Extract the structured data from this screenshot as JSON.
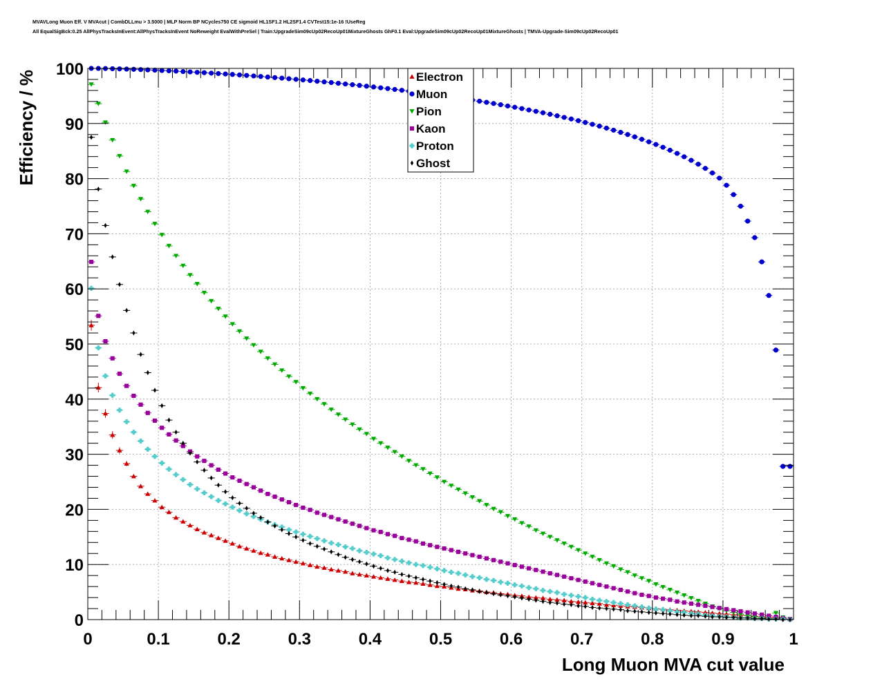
{
  "titles": {
    "line1": "MVAVLong Muon Eff. V MVAcut | CombDLLmu > 3.5000 | MLP Norm BP NCycles750 CE sigmoid HL1SF1.2 HL2SF1.4 CVTest15:1e-16 !UseReg",
    "line2": "All EqualSigBck:0.25 AllPhysTracksInEvent:AllPhysTracksInEvent NoReweight EvalWithPreSel | Train:UpgradeSim09cUp02RecoUp01MixtureGhosts GhF0.1 Eval:UpgradeSim09cUp02RecoUp01MixtureGhosts | TMVA-Upgrade-Sim09cUp02RecoUp01"
  },
  "chart_data": {
    "type": "scatter",
    "xlabel": "Long Muon MVA cut value",
    "ylabel": "Efficiency / %",
    "xlim": [
      0,
      1
    ],
    "ylim": [
      0,
      100
    ],
    "xticks": [
      "0",
      "0.1",
      "0.2",
      "0.3",
      "0.4",
      "0.5",
      "0.6",
      "0.7",
      "0.8",
      "0.9",
      "1"
    ],
    "yticks": [
      "0",
      "10",
      "20",
      "30",
      "40",
      "50",
      "60",
      "70",
      "80",
      "90",
      "100"
    ],
    "grid": true,
    "legend_position": "top-center",
    "x": [
      0.005,
      0.015,
      0.025,
      0.035,
      0.045,
      0.055,
      0.065,
      0.075,
      0.085,
      0.095,
      0.105,
      0.115,
      0.125,
      0.135,
      0.145,
      0.155,
      0.165,
      0.175,
      0.185,
      0.195,
      0.205,
      0.215,
      0.225,
      0.235,
      0.245,
      0.255,
      0.265,
      0.275,
      0.285,
      0.295,
      0.305,
      0.315,
      0.325,
      0.335,
      0.345,
      0.355,
      0.365,
      0.375,
      0.385,
      0.395,
      0.405,
      0.415,
      0.425,
      0.435,
      0.445,
      0.455,
      0.465,
      0.475,
      0.485,
      0.495,
      0.505,
      0.515,
      0.525,
      0.535,
      0.545,
      0.555,
      0.565,
      0.575,
      0.585,
      0.595,
      0.605,
      0.615,
      0.625,
      0.635,
      0.645,
      0.655,
      0.665,
      0.675,
      0.685,
      0.695,
      0.705,
      0.715,
      0.725,
      0.735,
      0.745,
      0.755,
      0.765,
      0.775,
      0.785,
      0.795,
      0.805,
      0.815,
      0.825,
      0.835,
      0.845,
      0.855,
      0.865,
      0.875,
      0.885,
      0.895,
      0.905,
      0.915,
      0.925,
      0.935,
      0.945,
      0.955,
      0.965,
      0.975,
      0.985,
      0.995
    ],
    "series": [
      {
        "name": "Electron",
        "marker": "triangle-up",
        "color": "#cc0000",
        "values": [
          53.4,
          42.1,
          37.4,
          33.5,
          30.7,
          28.3,
          26.0,
          24.2,
          22.8,
          21.6,
          20.4,
          19.5,
          18.5,
          17.8,
          17.1,
          16.4,
          15.8,
          15.3,
          14.8,
          14.3,
          13.8,
          13.3,
          12.9,
          12.5,
          12.1,
          11.8,
          11.4,
          11.1,
          10.8,
          10.5,
          10.2,
          9.9,
          9.6,
          9.4,
          9.1,
          8.9,
          8.7,
          8.4,
          8.2,
          8.0,
          7.8,
          7.6,
          7.4,
          7.2,
          7.0,
          6.8,
          6.7,
          6.5,
          6.3,
          6.1,
          6.0,
          5.8,
          5.6,
          5.5,
          5.3,
          5.2,
          5.0,
          4.9,
          4.7,
          4.6,
          4.4,
          4.3,
          4.1,
          4.0,
          3.9,
          3.7,
          3.6,
          3.5,
          3.3,
          3.2,
          3.1,
          3.0,
          2.9,
          2.7,
          2.6,
          2.5,
          2.4,
          2.3,
          2.2,
          2.1,
          2.0,
          1.9,
          1.8,
          1.7,
          1.6,
          1.5,
          1.4,
          1.3,
          1.2,
          1.1,
          1.0,
          0.9,
          0.8,
          0.7,
          0.6,
          0.5,
          0.4,
          0.3,
          0.2,
          0.1
        ]
      },
      {
        "name": "Muon",
        "marker": "circle",
        "color": "#0000cc",
        "values": [
          100.0,
          99.99,
          99.97,
          99.94,
          99.91,
          99.87,
          99.83,
          99.78,
          99.73,
          99.68,
          99.62,
          99.56,
          99.5,
          99.43,
          99.36,
          99.29,
          99.22,
          99.14,
          99.06,
          98.98,
          98.9,
          98.81,
          98.72,
          98.63,
          98.53,
          98.43,
          98.33,
          98.23,
          98.12,
          98.01,
          97.9,
          97.79,
          97.67,
          97.55,
          97.43,
          97.3,
          97.17,
          97.04,
          96.91,
          96.77,
          96.63,
          96.48,
          96.34,
          96.18,
          96.03,
          95.87,
          95.71,
          95.54,
          95.37,
          95.19,
          95.02,
          94.83,
          94.64,
          94.45,
          94.25,
          94.05,
          93.84,
          93.63,
          93.41,
          93.18,
          92.95,
          92.71,
          92.46,
          92.21,
          91.95,
          91.68,
          91.4,
          91.11,
          90.82,
          90.51,
          90.19,
          89.86,
          89.52,
          89.16,
          88.79,
          88.4,
          88.0,
          87.58,
          87.14,
          86.68,
          86.2,
          85.69,
          85.15,
          84.58,
          83.97,
          83.32,
          82.62,
          81.86,
          81.03,
          80.1,
          78.8,
          77.1,
          75.0,
          72.3,
          69.3,
          64.9,
          58.8,
          48.9,
          27.8,
          27.8
        ]
      },
      {
        "name": "Pion",
        "marker": "triangle-down",
        "color": "#00aa00",
        "values": [
          97.1,
          93.6,
          90.2,
          87.0,
          84.1,
          81.3,
          78.7,
          76.3,
          74.0,
          71.8,
          69.8,
          67.8,
          66.0,
          64.2,
          62.5,
          60.9,
          59.3,
          57.8,
          56.4,
          55.0,
          53.6,
          52.3,
          51.0,
          49.8,
          48.6,
          47.4,
          46.3,
          45.2,
          44.1,
          43.1,
          42.0,
          41.0,
          40.0,
          39.1,
          38.1,
          37.2,
          36.3,
          35.4,
          34.5,
          33.7,
          32.8,
          32.0,
          31.2,
          30.4,
          29.6,
          28.8,
          28.0,
          27.3,
          26.5,
          25.8,
          25.0,
          24.3,
          23.6,
          22.9,
          22.2,
          21.5,
          20.8,
          20.1,
          19.5,
          18.8,
          18.2,
          17.5,
          16.9,
          16.2,
          15.6,
          15.0,
          14.4,
          13.8,
          13.2,
          12.6,
          12.0,
          11.4,
          10.8,
          10.2,
          9.7,
          9.1,
          8.6,
          8.0,
          7.5,
          7.0,
          6.4,
          5.9,
          5.4,
          4.9,
          4.4,
          3.9,
          3.4,
          2.9,
          2.4,
          2.0,
          1.6,
          1.3,
          1.0,
          0.7,
          0.5,
          0.3,
          0.2,
          1.2,
          0.4,
          0.1
        ]
      },
      {
        "name": "Kaon",
        "marker": "square",
        "color": "#990099",
        "values": [
          64.9,
          55.1,
          50.5,
          47.4,
          44.6,
          42.4,
          40.6,
          39.0,
          37.5,
          36.1,
          34.8,
          33.6,
          32.5,
          31.5,
          30.5,
          29.6,
          28.8,
          28.0,
          27.2,
          26.5,
          25.8,
          25.2,
          24.6,
          24.0,
          23.4,
          22.8,
          22.3,
          21.8,
          21.3,
          20.8,
          20.3,
          19.9,
          19.4,
          19.0,
          18.6,
          18.2,
          17.8,
          17.4,
          17.0,
          16.6,
          16.2,
          15.9,
          15.5,
          15.2,
          14.8,
          14.5,
          14.2,
          13.8,
          13.5,
          13.2,
          12.9,
          12.6,
          12.3,
          12.0,
          11.7,
          11.4,
          11.1,
          10.8,
          10.5,
          10.2,
          9.9,
          9.6,
          9.3,
          9.0,
          8.7,
          8.4,
          8.1,
          7.8,
          7.5,
          7.2,
          6.9,
          6.6,
          6.3,
          6.0,
          5.7,
          5.4,
          5.1,
          4.8,
          4.5,
          4.3,
          4.0,
          3.8,
          3.6,
          3.3,
          3.1,
          2.9,
          2.7,
          2.5,
          2.3,
          2.1,
          1.9,
          1.7,
          1.5,
          1.3,
          1.1,
          0.9,
          0.7,
          0.5,
          0.3,
          0.1
        ]
      },
      {
        "name": "Proton",
        "marker": "cross",
        "color": "#55cccc",
        "values": [
          60.1,
          49.3,
          44.2,
          40.7,
          38.0,
          35.9,
          34.0,
          32.4,
          30.9,
          29.6,
          28.4,
          27.3,
          26.3,
          25.4,
          24.5,
          23.7,
          23.0,
          22.3,
          21.6,
          21.0,
          20.4,
          19.8,
          19.2,
          18.7,
          18.2,
          17.7,
          17.2,
          16.8,
          16.3,
          15.9,
          15.5,
          15.1,
          14.7,
          14.3,
          13.9,
          13.6,
          13.2,
          12.9,
          12.5,
          12.2,
          11.9,
          11.6,
          11.2,
          10.9,
          10.6,
          10.3,
          10.0,
          9.8,
          9.5,
          9.2,
          8.9,
          8.6,
          8.4,
          8.1,
          7.8,
          7.6,
          7.3,
          7.1,
          6.8,
          6.6,
          6.3,
          6.1,
          5.8,
          5.6,
          5.3,
          5.1,
          4.9,
          4.6,
          4.4,
          4.2,
          4.0,
          3.7,
          3.5,
          3.3,
          3.1,
          2.9,
          2.7,
          2.5,
          2.3,
          2.1,
          1.9,
          1.8,
          1.6,
          1.4,
          1.3,
          1.1,
          1.0,
          0.8,
          0.7,
          0.6,
          0.5,
          0.4,
          0.3,
          0.3,
          0.2,
          0.2,
          0.1,
          0.1,
          0.1,
          0.0
        ]
      },
      {
        "name": "Ghost",
        "marker": "diamond",
        "color": "#000000",
        "values": [
          87.5,
          78.1,
          71.5,
          65.8,
          60.8,
          56.1,
          52.0,
          48.1,
          44.8,
          41.6,
          38.8,
          36.2,
          34.0,
          32.0,
          30.2,
          28.6,
          27.1,
          25.7,
          24.4,
          23.2,
          22.1,
          21.1,
          20.2,
          19.3,
          18.5,
          17.7,
          17.0,
          16.3,
          15.6,
          15.0,
          14.4,
          13.8,
          13.3,
          12.8,
          12.3,
          11.8,
          11.3,
          10.9,
          10.5,
          10.1,
          9.7,
          9.3,
          8.9,
          8.6,
          8.2,
          7.9,
          7.6,
          7.3,
          7.0,
          6.7,
          6.4,
          6.1,
          5.9,
          5.6,
          5.4,
          5.1,
          4.9,
          4.7,
          4.5,
          4.3,
          4.1,
          3.9,
          3.7,
          3.5,
          3.3,
          3.1,
          3.0,
          2.8,
          2.7,
          2.5,
          2.4,
          2.2,
          2.1,
          2.0,
          1.9,
          1.8,
          1.6,
          1.5,
          1.4,
          1.3,
          1.2,
          1.1,
          1.0,
          0.9,
          0.8,
          0.7,
          0.7,
          0.6,
          0.5,
          0.5,
          0.4,
          0.4,
          0.3,
          0.3,
          0.2,
          0.2,
          0.1,
          0.1,
          0.0,
          0.0
        ]
      }
    ]
  }
}
